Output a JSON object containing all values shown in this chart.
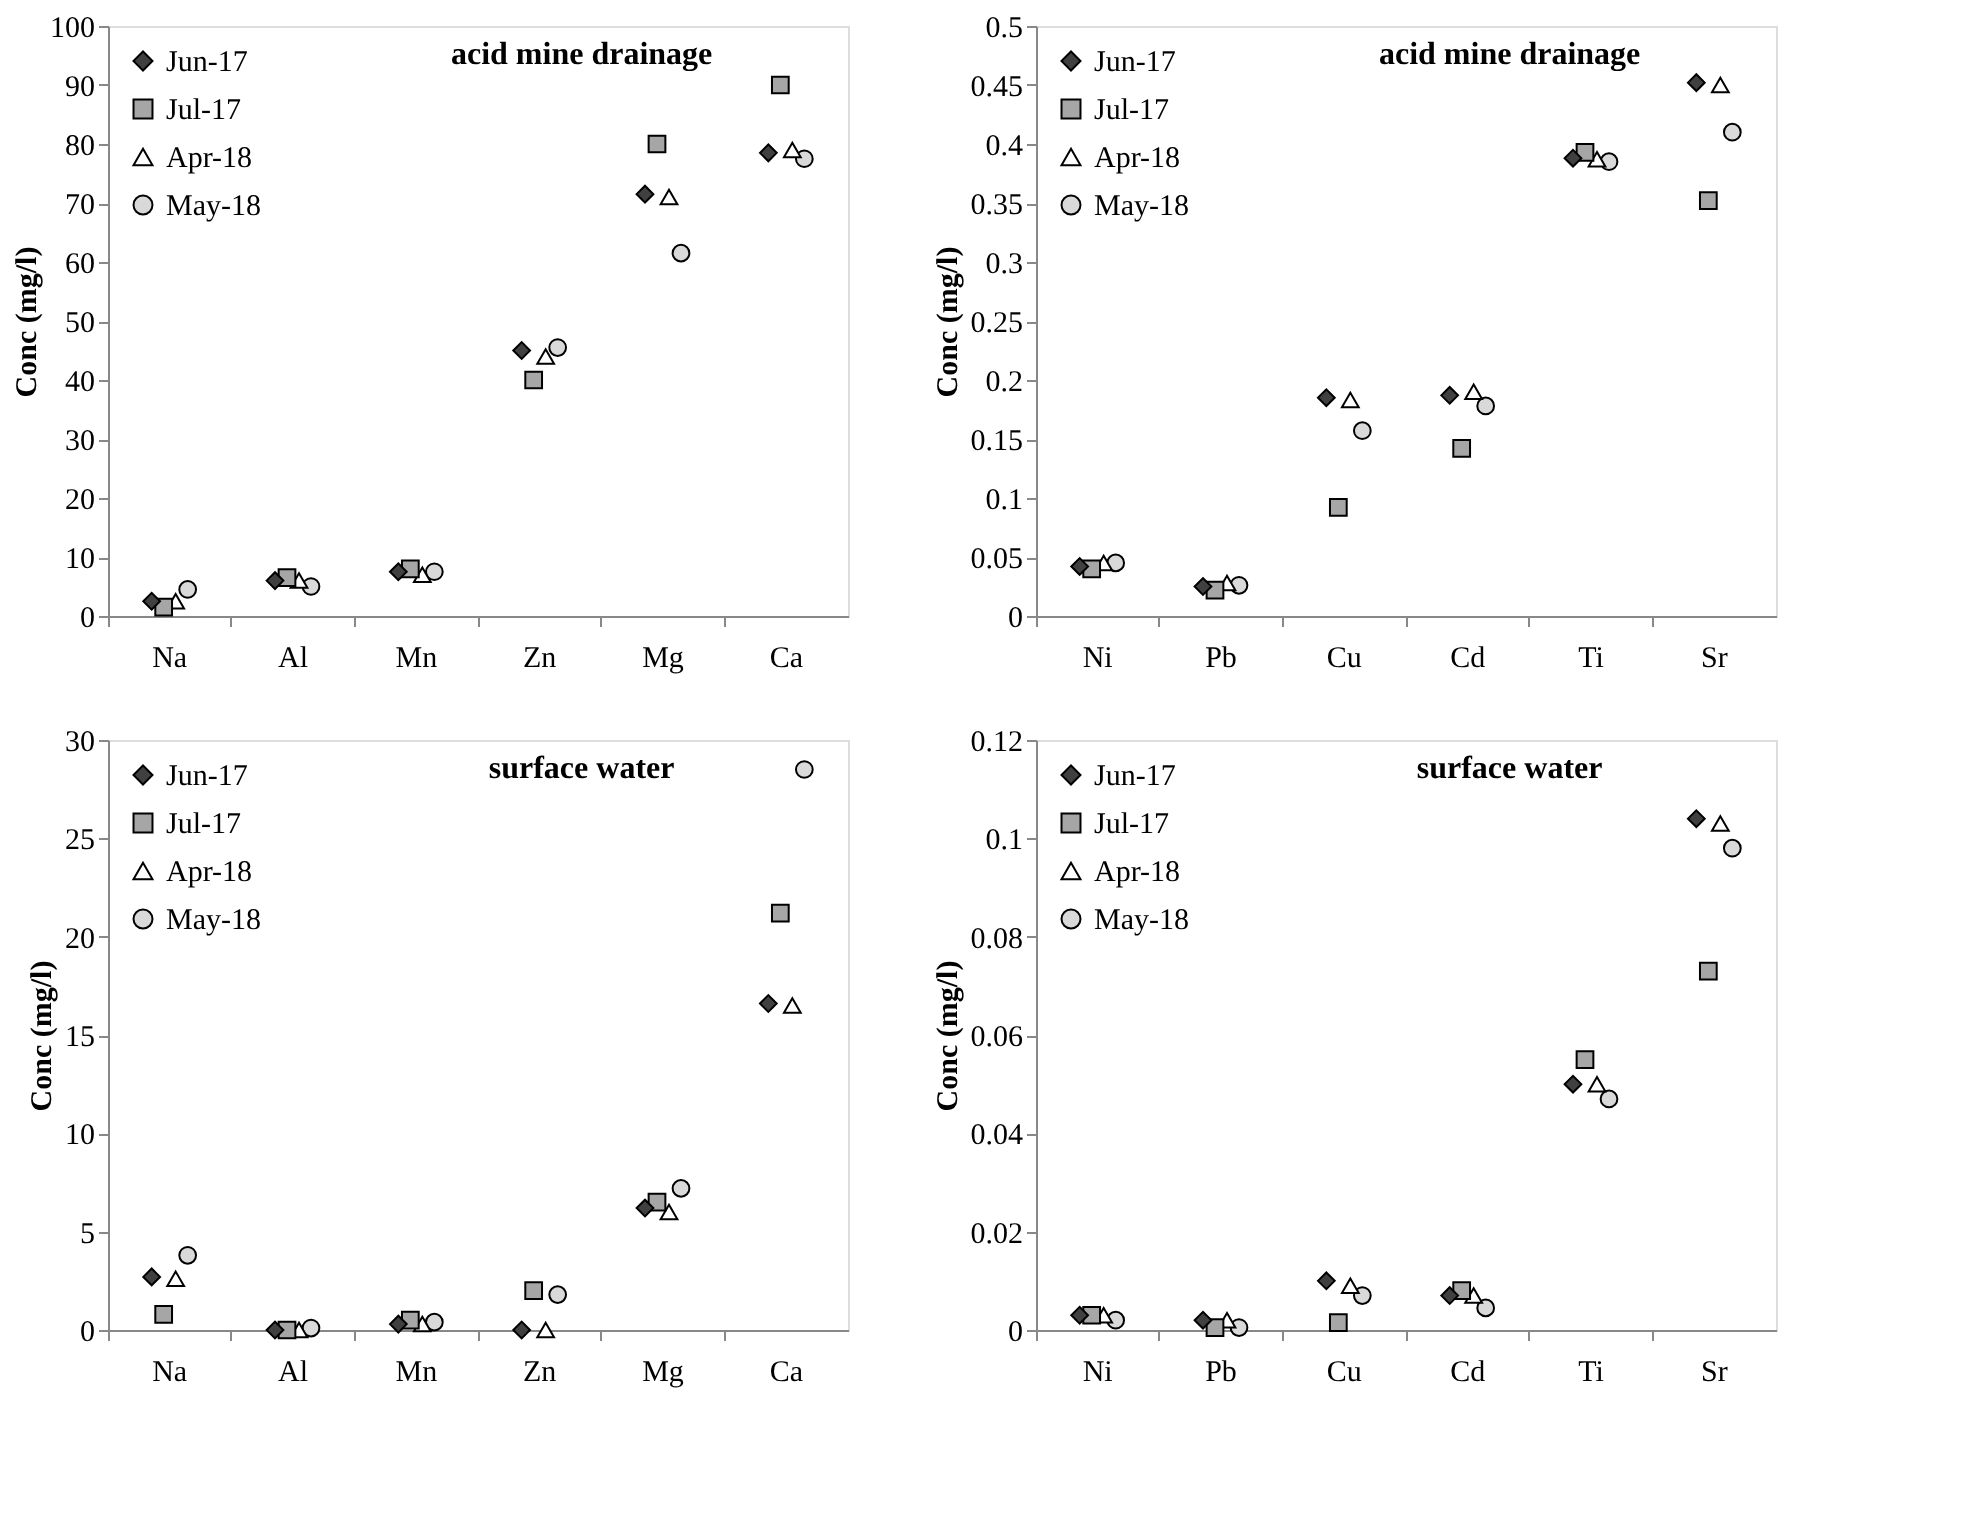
{
  "chart_data": [
    {
      "type": "scatter",
      "title": "acid mine drainage",
      "ylabel": "Conc (mg/l)",
      "categories": [
        "Na",
        "Al",
        "Mn",
        "Zn",
        "Mg",
        "Ca"
      ],
      "ylim": [
        0,
        100
      ],
      "yticks": [
        0,
        10,
        20,
        30,
        40,
        50,
        60,
        70,
        80,
        90,
        100
      ],
      "grid": false,
      "legend": "top left",
      "series": [
        {
          "name": "Jun-17",
          "color": "#404040",
          "marker": "diamond",
          "values": [
            2.5,
            6,
            7.5,
            45,
            71.5,
            78.5
          ]
        },
        {
          "name": "Jul-17",
          "color": "#a6a6a6",
          "marker": "square",
          "values": [
            1.5,
            6.5,
            8,
            40,
            80,
            90
          ]
        },
        {
          "name": "Apr-18",
          "color": "#ffffff",
          "marker": "triangle",
          "values": [
            2.5,
            6,
            7,
            44,
            71,
            79
          ]
        },
        {
          "name": "May-18",
          "color": "#d9d9d9",
          "marker": "circle",
          "values": [
            4.5,
            5,
            7.5,
            45.5,
            61.5,
            77.5
          ]
        }
      ]
    },
    {
      "type": "scatter",
      "title": "acid mine drainage",
      "ylabel": "Conc (mg/l)",
      "categories": [
        "Ni",
        "Pb",
        "Cu",
        "Cd",
        "Ti",
        "Sr"
      ],
      "ylim": [
        0,
        0.5
      ],
      "yticks": [
        0,
        0.05,
        0.1,
        0.15,
        0.2,
        0.25,
        0.3,
        0.35,
        0.4,
        0.45,
        0.5
      ],
      "grid": false,
      "legend": "top left",
      "series": [
        {
          "name": "Jun-17",
          "color": "#404040",
          "marker": "diamond",
          "values": [
            0.042,
            0.025,
            0.185,
            0.187,
            0.388,
            0.452
          ]
        },
        {
          "name": "Jul-17",
          "color": "#a6a6a6",
          "marker": "square",
          "values": [
            0.04,
            0.022,
            0.092,
            0.142,
            0.393,
            0.352
          ]
        },
        {
          "name": "Apr-18",
          "color": "#ffffff",
          "marker": "triangle",
          "values": [
            0.045,
            0.028,
            0.183,
            0.19,
            0.387,
            0.45
          ]
        },
        {
          "name": "May-18",
          "color": "#d9d9d9",
          "marker": "circle",
          "values": [
            0.045,
            0.026,
            0.157,
            0.178,
            0.385,
            0.41
          ]
        }
      ]
    },
    {
      "type": "scatter",
      "title": "surface water",
      "ylabel": "Conc (mg/l)",
      "categories": [
        "Na",
        "Al",
        "Mn",
        "Zn",
        "Mg",
        "Ca"
      ],
      "ylim": [
        0,
        30
      ],
      "yticks": [
        0,
        5,
        10,
        15,
        20,
        25,
        30
      ],
      "grid": false,
      "legend": "top left",
      "series": [
        {
          "name": "Jun-17",
          "color": "#404040",
          "marker": "diamond",
          "values": [
            2.7,
            0,
            0.3,
            0,
            6.2,
            16.6
          ]
        },
        {
          "name": "Jul-17",
          "color": "#a6a6a6",
          "marker": "square",
          "values": [
            0.8,
            0,
            0.5,
            2,
            6.5,
            21.2
          ]
        },
        {
          "name": "Apr-18",
          "color": "#ffffff",
          "marker": "triangle",
          "values": [
            2.6,
            0,
            0.3,
            0,
            6,
            16.5
          ]
        },
        {
          "name": "May-18",
          "color": "#d9d9d9",
          "marker": "circle",
          "values": [
            3.8,
            0.1,
            0.4,
            1.8,
            7.2,
            28.5
          ]
        }
      ]
    },
    {
      "type": "scatter",
      "title": "surface water",
      "ylabel": "Conc (mg/l)",
      "categories": [
        "Ni",
        "Pb",
        "Cu",
        "Cd",
        "Ti",
        "Sr"
      ],
      "ylim": [
        0,
        0.12
      ],
      "yticks": [
        0,
        0.02,
        0.04,
        0.06,
        0.08,
        0.1,
        0.12
      ],
      "grid": false,
      "legend": "top left",
      "series": [
        {
          "name": "Jun-17",
          "color": "#404040",
          "marker": "diamond",
          "values": [
            0.003,
            0.002,
            0.01,
            0.007,
            0.05,
            0.104
          ]
        },
        {
          "name": "Jul-17",
          "color": "#a6a6a6",
          "marker": "square",
          "values": [
            0.003,
            0.0005,
            0.0015,
            0.008,
            0.055,
            0.073
          ]
        },
        {
          "name": "Apr-18",
          "color": "#ffffff",
          "marker": "triangle",
          "values": [
            0.003,
            0.002,
            0.009,
            0.007,
            0.05,
            0.103
          ]
        },
        {
          "name": "May-18",
          "color": "#d9d9d9",
          "marker": "circle",
          "values": [
            0.002,
            0.0005,
            0.007,
            0.0045,
            0.047,
            0.098
          ]
        }
      ]
    }
  ]
}
